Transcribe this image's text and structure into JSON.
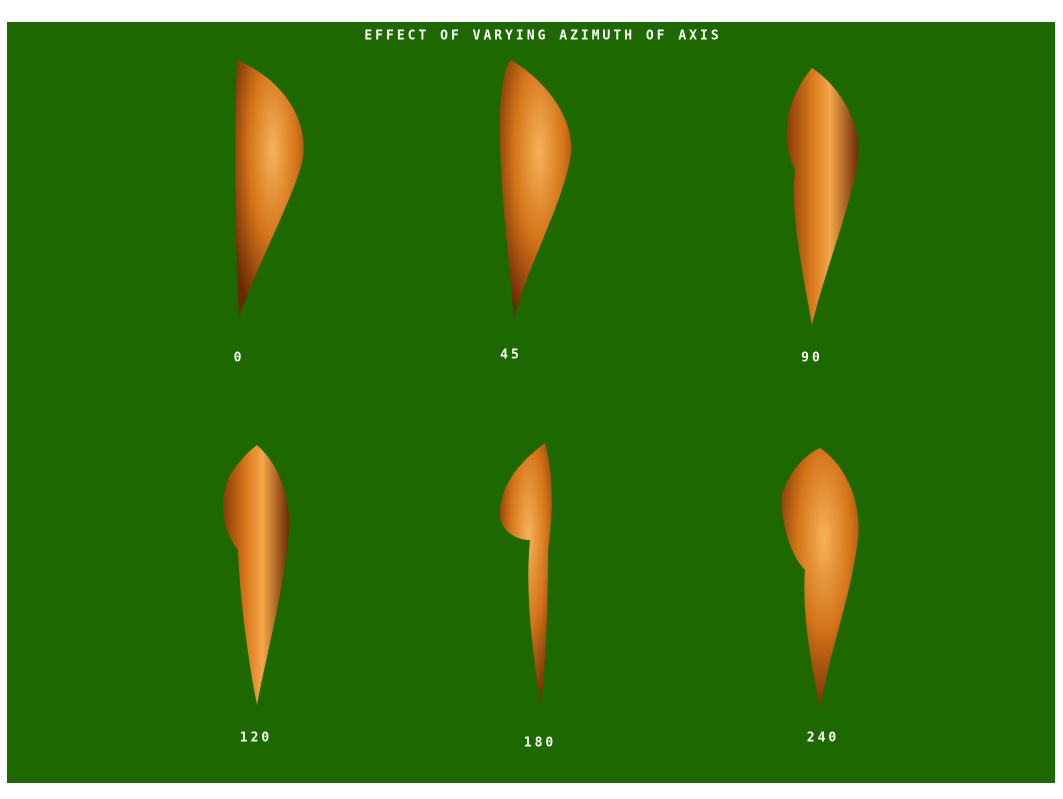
{
  "title": "EFFECT OF VARYING AZIMUTH OF AXIS",
  "panels": [
    {
      "label": "0"
    },
    {
      "label": "45"
    },
    {
      "label": "90"
    },
    {
      "label": "120"
    },
    {
      "label": "180"
    },
    {
      "label": "240"
    }
  ]
}
